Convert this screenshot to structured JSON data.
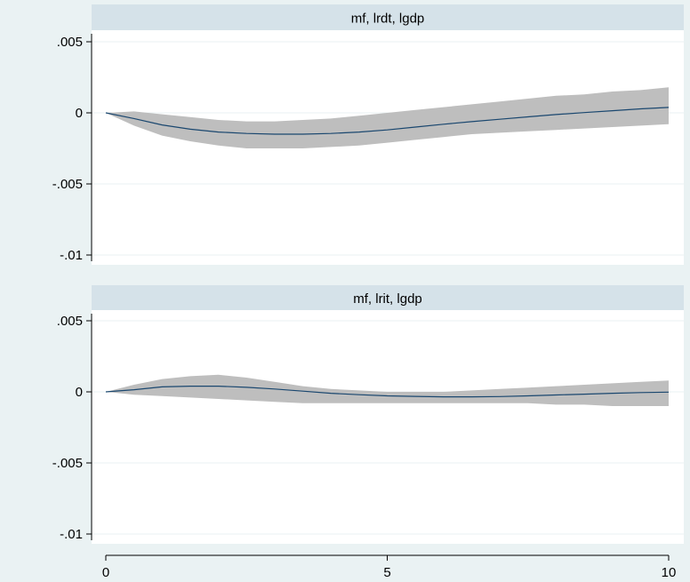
{
  "figure": {
    "background": "#eaf2f3",
    "plot_background": "#ffffff",
    "strip_color": "#d5e2e9",
    "band_color": "#bebebe",
    "line_color": "#1a476f"
  },
  "chart_data": [
    {
      "type": "line",
      "panel_title": "mf, lrdt, lgdp",
      "x": [
        0,
        0.5,
        1,
        1.5,
        2,
        2.5,
        3,
        3.5,
        4,
        4.5,
        5,
        5.5,
        6,
        6.5,
        7,
        7.5,
        8,
        8.5,
        9,
        9.5,
        10
      ],
      "series": [
        {
          "role": "estimate",
          "values": [
            0,
            -0.0004,
            -0.00085,
            -0.00115,
            -0.00135,
            -0.00145,
            -0.0015,
            -0.0015,
            -0.00145,
            -0.00135,
            -0.0012,
            -0.001,
            -0.0008,
            -0.00062,
            -0.00045,
            -0.00028,
            -0.00012,
            2e-05,
            0.00015,
            0.00028,
            0.00038
          ]
        },
        {
          "role": "lower",
          "values": [
            0,
            -0.0009,
            -0.0016,
            -0.002,
            -0.0023,
            -0.0025,
            -0.0025,
            -0.0025,
            -0.0024,
            -0.0023,
            -0.0021,
            -0.0019,
            -0.0017,
            -0.0015,
            -0.0014,
            -0.0013,
            -0.0012,
            -0.0011,
            -0.001,
            -0.0009,
            -0.0008
          ]
        },
        {
          "role": "upper",
          "values": [
            0,
            0.0001,
            -0.0001,
            -0.0003,
            -0.0005,
            -0.0006,
            -0.0006,
            -0.0005,
            -0.0004,
            -0.0002,
            0,
            0.0002,
            0.0004,
            0.0006,
            0.0008,
            0.001,
            0.0012,
            0.0013,
            0.0015,
            0.0016,
            0.0018
          ]
        }
      ],
      "xlim": [
        0,
        10
      ],
      "ylim": [
        -0.0102,
        0.0055
      ],
      "yticks": [
        0.005,
        0,
        -0.005,
        -0.01
      ],
      "ytick_labels": [
        ".005",
        "0",
        "-.005",
        "-.01"
      ],
      "grid": true
    },
    {
      "type": "line",
      "panel_title": "mf, lrit, lgdp",
      "x": [
        0,
        0.5,
        1,
        1.5,
        2,
        2.5,
        3,
        3.5,
        4,
        4.5,
        5,
        5.5,
        6,
        6.5,
        7,
        7.5,
        8,
        8.5,
        9,
        9.5,
        10
      ],
      "series": [
        {
          "role": "estimate",
          "values": [
            0,
            0.00015,
            0.00035,
            0.0004,
            0.0004,
            0.00032,
            0.0002,
            5e-05,
            -0.0001,
            -0.0002,
            -0.00028,
            -0.00032,
            -0.00035,
            -0.00035,
            -0.00033,
            -0.00028,
            -0.00022,
            -0.00016,
            -0.0001,
            -5e-05,
            -2e-05
          ]
        },
        {
          "role": "lower",
          "values": [
            0,
            -0.0002,
            -0.0003,
            -0.0004,
            -0.0005,
            -0.0006,
            -0.0007,
            -0.0008,
            -0.0008,
            -0.0008,
            -0.0008,
            -0.0008,
            -0.0008,
            -0.0008,
            -0.0008,
            -0.0008,
            -0.0009,
            -0.0009,
            -0.001,
            -0.001,
            -0.001
          ]
        },
        {
          "role": "upper",
          "values": [
            0,
            0.0005,
            0.0009,
            0.0011,
            0.0012,
            0.001,
            0.0007,
            0.0004,
            0.0002,
            0.0001,
            0,
            0,
            0,
            0.0001,
            0.0002,
            0.0003,
            0.0004,
            0.0005,
            0.0006,
            0.0007,
            0.0008
          ]
        }
      ],
      "xlim": [
        0,
        10
      ],
      "ylim": [
        -0.0102,
        0.0055
      ],
      "yticks": [
        0.005,
        0,
        -0.005,
        -0.01
      ],
      "ytick_labels": [
        ".005",
        "0",
        "-.005",
        "-.01"
      ],
      "xticks": [
        0,
        5,
        10
      ],
      "xtick_labels": [
        "0",
        "5",
        "10"
      ],
      "grid": true
    }
  ]
}
